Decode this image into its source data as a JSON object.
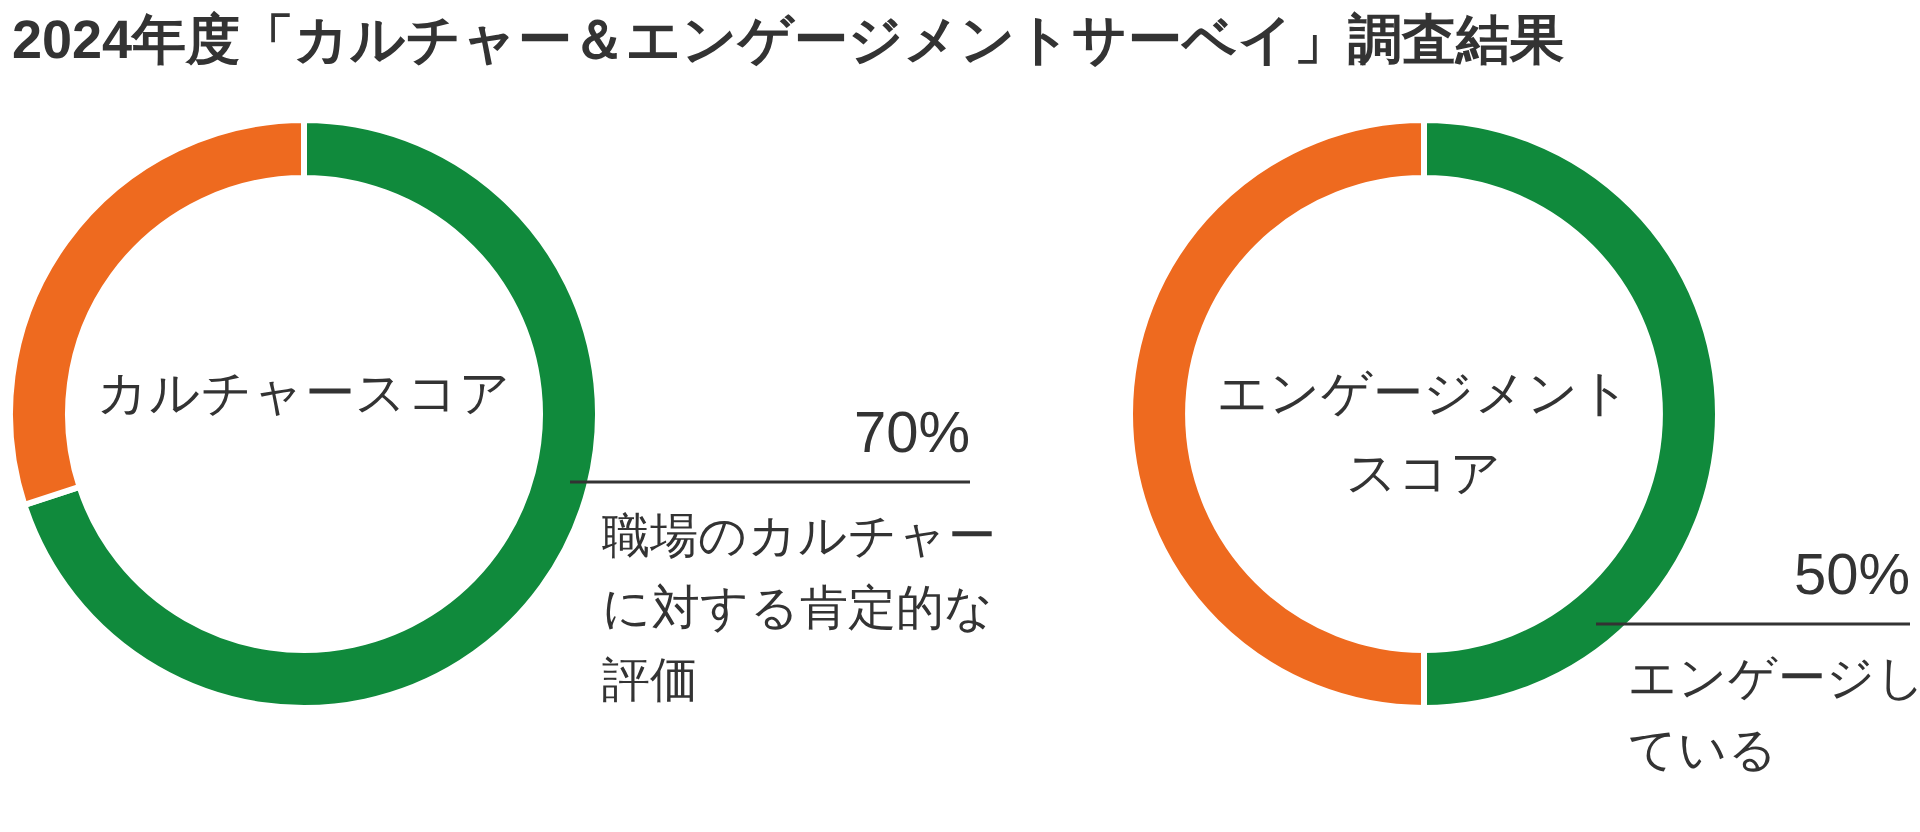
{
  "chart_data": [
    {
      "type": "donut",
      "title": "2024年度「カルチャー＆エンゲージメントサーベイ」調査結果",
      "categories": [
        "職場のカルチャーに対する肯定的な評価",
        null
      ],
      "values": [
        70,
        30
      ],
      "colors": [
        "#108a3c",
        "#ee6a1f"
      ],
      "value_labels": [
        "70%",
        null
      ],
      "annotations": [
        "カルチャースコア"
      ]
    },
    {
      "type": "donut",
      "categories": [
        "エンゲージしている",
        null
      ],
      "values": [
        50,
        50
      ],
      "colors": [
        "#108a3c",
        "#ee6a1f"
      ],
      "value_labels": [
        "50%",
        null
      ],
      "annotations": [
        "エンゲージメントスコア"
      ]
    }
  ]
}
